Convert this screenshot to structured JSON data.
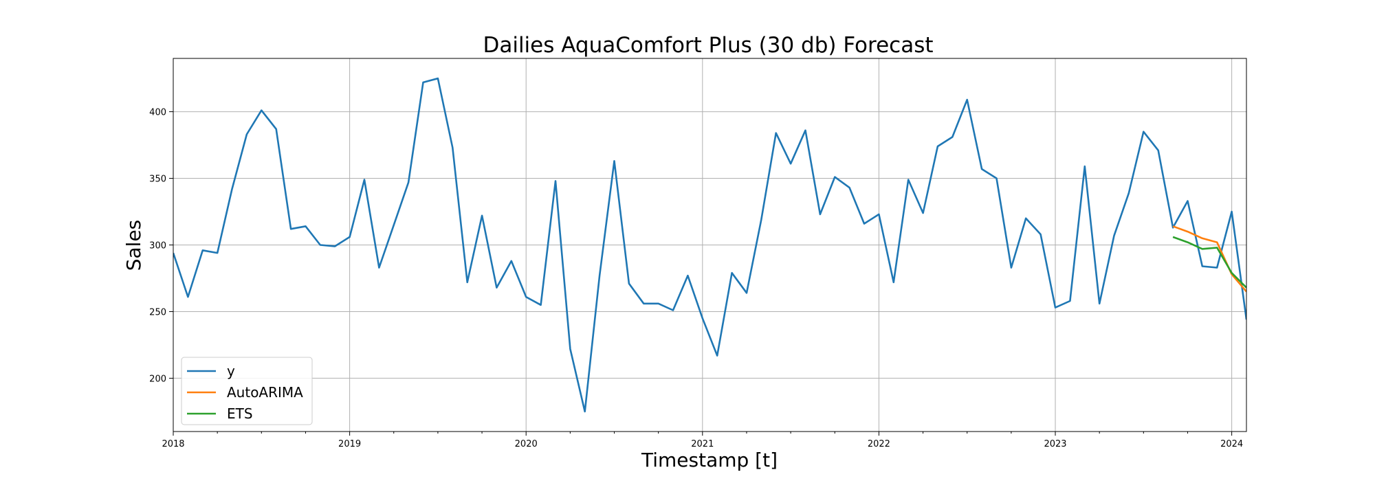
{
  "chart_data": {
    "type": "line",
    "title": "Dailies AquaComfort Plus (30 db) Forecast",
    "xlabel": "Timestamp [t]",
    "ylabel": "Sales",
    "xlim": [
      "2018-01",
      "2024-02"
    ],
    "ylim": [
      160,
      440
    ],
    "x_ticks": [
      "2018",
      "2019",
      "2020",
      "2021",
      "2022",
      "2023",
      "2024"
    ],
    "y_ticks": [
      200,
      250,
      300,
      350,
      400
    ],
    "grid": true,
    "legend_position": "lower-left",
    "series": [
      {
        "name": "y",
        "color": "#1f77b4",
        "x": [
          "2018-01",
          "2018-02",
          "2018-03",
          "2018-04",
          "2018-05",
          "2018-06",
          "2018-07",
          "2018-08",
          "2018-09",
          "2018-10",
          "2018-11",
          "2018-12",
          "2019-01",
          "2019-02",
          "2019-03",
          "2019-04",
          "2019-05",
          "2019-06",
          "2019-07",
          "2019-08",
          "2019-09",
          "2019-10",
          "2019-11",
          "2019-12",
          "2020-01",
          "2020-02",
          "2020-03",
          "2020-04",
          "2020-05",
          "2020-06",
          "2020-07",
          "2020-08",
          "2020-09",
          "2020-10",
          "2020-11",
          "2020-12",
          "2021-01",
          "2021-02",
          "2021-03",
          "2021-04",
          "2021-05",
          "2021-06",
          "2021-07",
          "2021-08",
          "2021-09",
          "2021-10",
          "2021-11",
          "2021-12",
          "2022-01",
          "2022-02",
          "2022-03",
          "2022-04",
          "2022-05",
          "2022-06",
          "2022-07",
          "2022-08",
          "2022-09",
          "2022-10",
          "2022-11",
          "2022-12",
          "2023-01",
          "2023-02",
          "2023-03",
          "2023-04",
          "2023-05",
          "2023-06",
          "2023-07",
          "2023-08",
          "2023-09",
          "2023-10",
          "2023-11",
          "2023-12",
          "2024-01",
          "2024-02"
        ],
        "values": [
          294,
          261,
          296,
          294,
          342,
          383,
          401,
          387,
          312,
          314,
          300,
          299,
          306,
          349,
          283,
          315,
          347,
          422,
          425,
          373,
          272,
          322,
          268,
          288,
          261,
          255,
          348,
          222,
          175,
          277,
          363,
          271,
          256,
          256,
          251,
          277,
          245,
          217,
          279,
          264,
          319,
          384,
          361,
          386,
          323,
          351,
          343,
          316,
          323,
          272,
          349,
          324,
          374,
          381,
          409,
          357,
          350,
          283,
          320,
          308,
          253,
          258,
          359,
          256,
          307,
          339,
          385,
          371,
          313,
          333,
          284,
          283,
          325,
          244
        ]
      },
      {
        "name": "AutoARIMA",
        "color": "#ff7f0e",
        "x": [
          "2023-09",
          "2023-10",
          "2023-11",
          "2023-12",
          "2024-01",
          "2024-02"
        ],
        "values": [
          314,
          310,
          305,
          302,
          278,
          265
        ]
      },
      {
        "name": "ETS",
        "color": "#2ca02c",
        "x": [
          "2023-09",
          "2023-10",
          "2023-11",
          "2023-12",
          "2024-01",
          "2024-02"
        ],
        "values": [
          306,
          302,
          297,
          298,
          279,
          268
        ]
      }
    ]
  }
}
